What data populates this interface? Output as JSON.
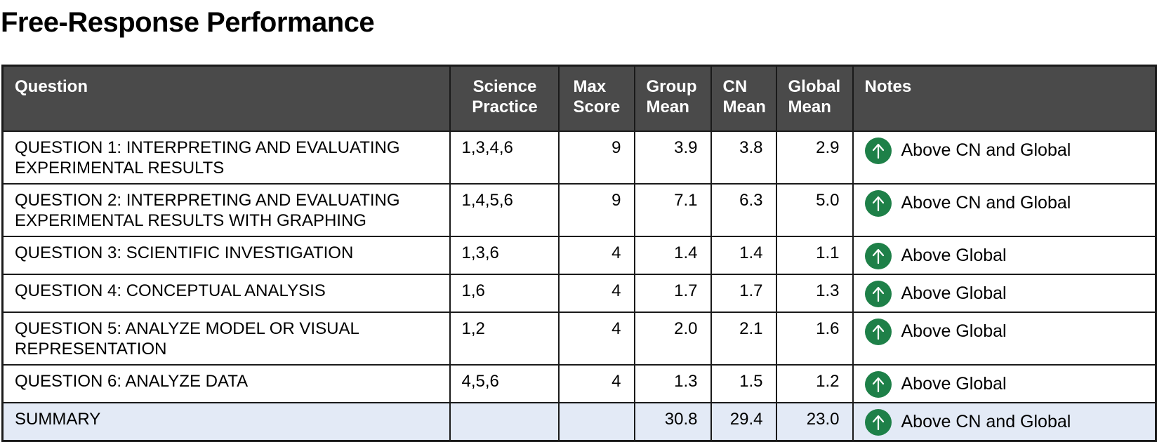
{
  "title": "Free-Response Performance",
  "columns": {
    "question": "Question",
    "practice_l1": "Science",
    "practice_l2": "Practice",
    "max_l1": "Max",
    "max_l2": "Score",
    "group_l1": "Group",
    "group_l2": "Mean",
    "cn_l1": "CN",
    "cn_l2": "Mean",
    "global_l1": "Global",
    "global_l2": "Mean",
    "notes": "Notes"
  },
  "rows": [
    {
      "question": "QUESTION 1: INTERPRETING AND EVALUATING EXPERIMENTAL RESULTS",
      "practice": "1,3,4,6",
      "max": "9",
      "group": "3.9",
      "cn": "3.8",
      "global": "2.9",
      "note": "Above CN and Global",
      "icon": "arrow-up-icon"
    },
    {
      "question": "QUESTION 2: INTERPRETING AND EVALUATING EXPERIMENTAL RESULTS WITH GRAPHING",
      "practice": "1,4,5,6",
      "max": "9",
      "group": "7.1",
      "cn": "6.3",
      "global": "5.0",
      "note": "Above CN and Global",
      "icon": "arrow-up-icon"
    },
    {
      "question": "QUESTION 3: SCIENTIFIC INVESTIGATION",
      "practice": "1,3,6",
      "max": "4",
      "group": "1.4",
      "cn": "1.4",
      "global": "1.1",
      "note": "Above Global",
      "icon": "arrow-up-icon"
    },
    {
      "question": "QUESTION 4: CONCEPTUAL ANALYSIS",
      "practice": "1,6",
      "max": "4",
      "group": "1.7",
      "cn": "1.7",
      "global": "1.3",
      "note": "Above Global",
      "icon": "arrow-up-icon"
    },
    {
      "question": "QUESTION 5: ANALYZE MODEL OR VISUAL REPRESENTATION",
      "practice": "1,2",
      "max": "4",
      "group": "2.0",
      "cn": "2.1",
      "global": "1.6",
      "note": "Above Global",
      "icon": "arrow-up-icon"
    },
    {
      "question": "QUESTION 6: ANALYZE DATA",
      "practice": "4,5,6",
      "max": "4",
      "group": "1.3",
      "cn": "1.5",
      "global": "1.2",
      "note": "Above Global",
      "icon": "arrow-up-icon"
    }
  ],
  "summary": {
    "label": "SUMMARY",
    "practice": "",
    "max": "",
    "group": "30.8",
    "cn": "29.4",
    "global": "23.0",
    "note": "Above CN and Global",
    "icon": "arrow-up-icon"
  },
  "colors": {
    "header_bg": "#4a4a4a",
    "summary_bg": "#e3eaf6",
    "up_icon": "#1e8048"
  }
}
